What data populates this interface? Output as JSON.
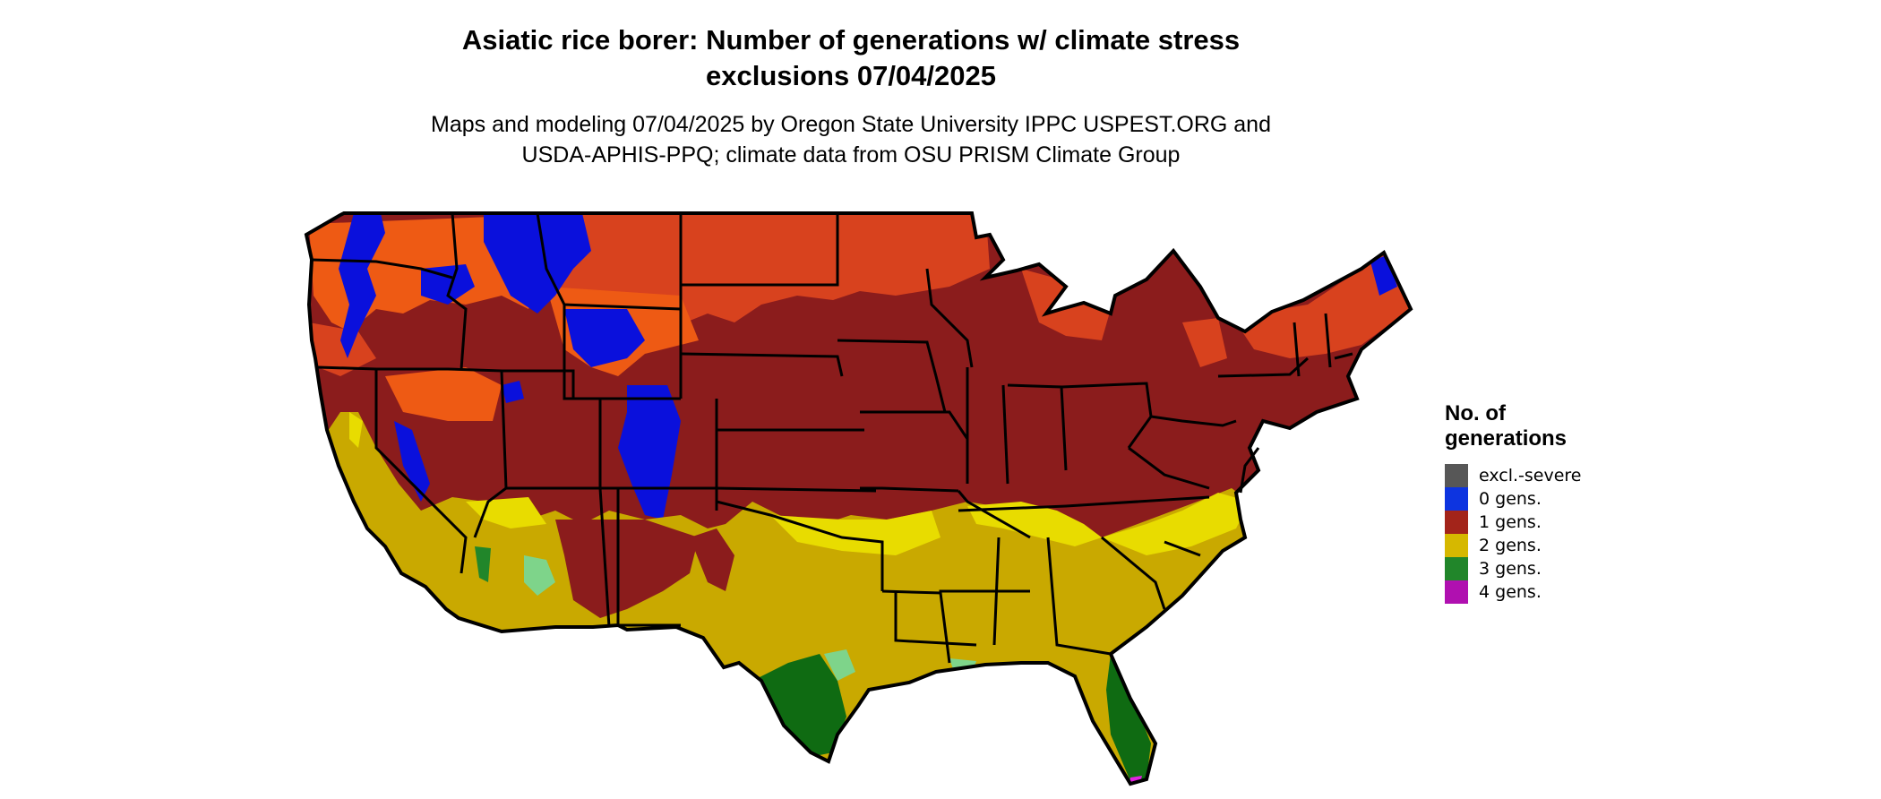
{
  "title": {
    "line1": "Asiatic rice borer: Number of generations w/ climate stress",
    "line2": "exclusions 07/04/2025"
  },
  "subtitle": {
    "line1": "Maps and modeling 07/04/2025 by Oregon State University IPPC USPEST.ORG and",
    "line2": "USDA-APHIS-PPQ; climate data from OSU PRISM Climate Group"
  },
  "legend": {
    "title_line1": "No. of",
    "title_line2": "generations",
    "items": [
      {
        "label": "excl.-severe",
        "color": "#575757"
      },
      {
        "label": "0 gens.",
        "color": "#0d34e0"
      },
      {
        "label": "1 gens.",
        "color": "#a3241a"
      },
      {
        "label": "2 gens.",
        "color": "#d6b800"
      },
      {
        "label": "3 gens.",
        "color": "#21862a"
      },
      {
        "label": "4 gens.",
        "color": "#b010b0"
      }
    ]
  },
  "map_colors": {
    "gen0": "#0a10dc",
    "gen1_dark": "#8b1c1c",
    "gen1_light": "#d8421e",
    "gen1_orange": "#ee5a14",
    "gen2": "#c9a900",
    "gen2_bright": "#e8dc00",
    "gen3": "#0f6b12",
    "gen3_light": "#7ed48a",
    "gen4": "#e020e0",
    "border": "#000000"
  }
}
